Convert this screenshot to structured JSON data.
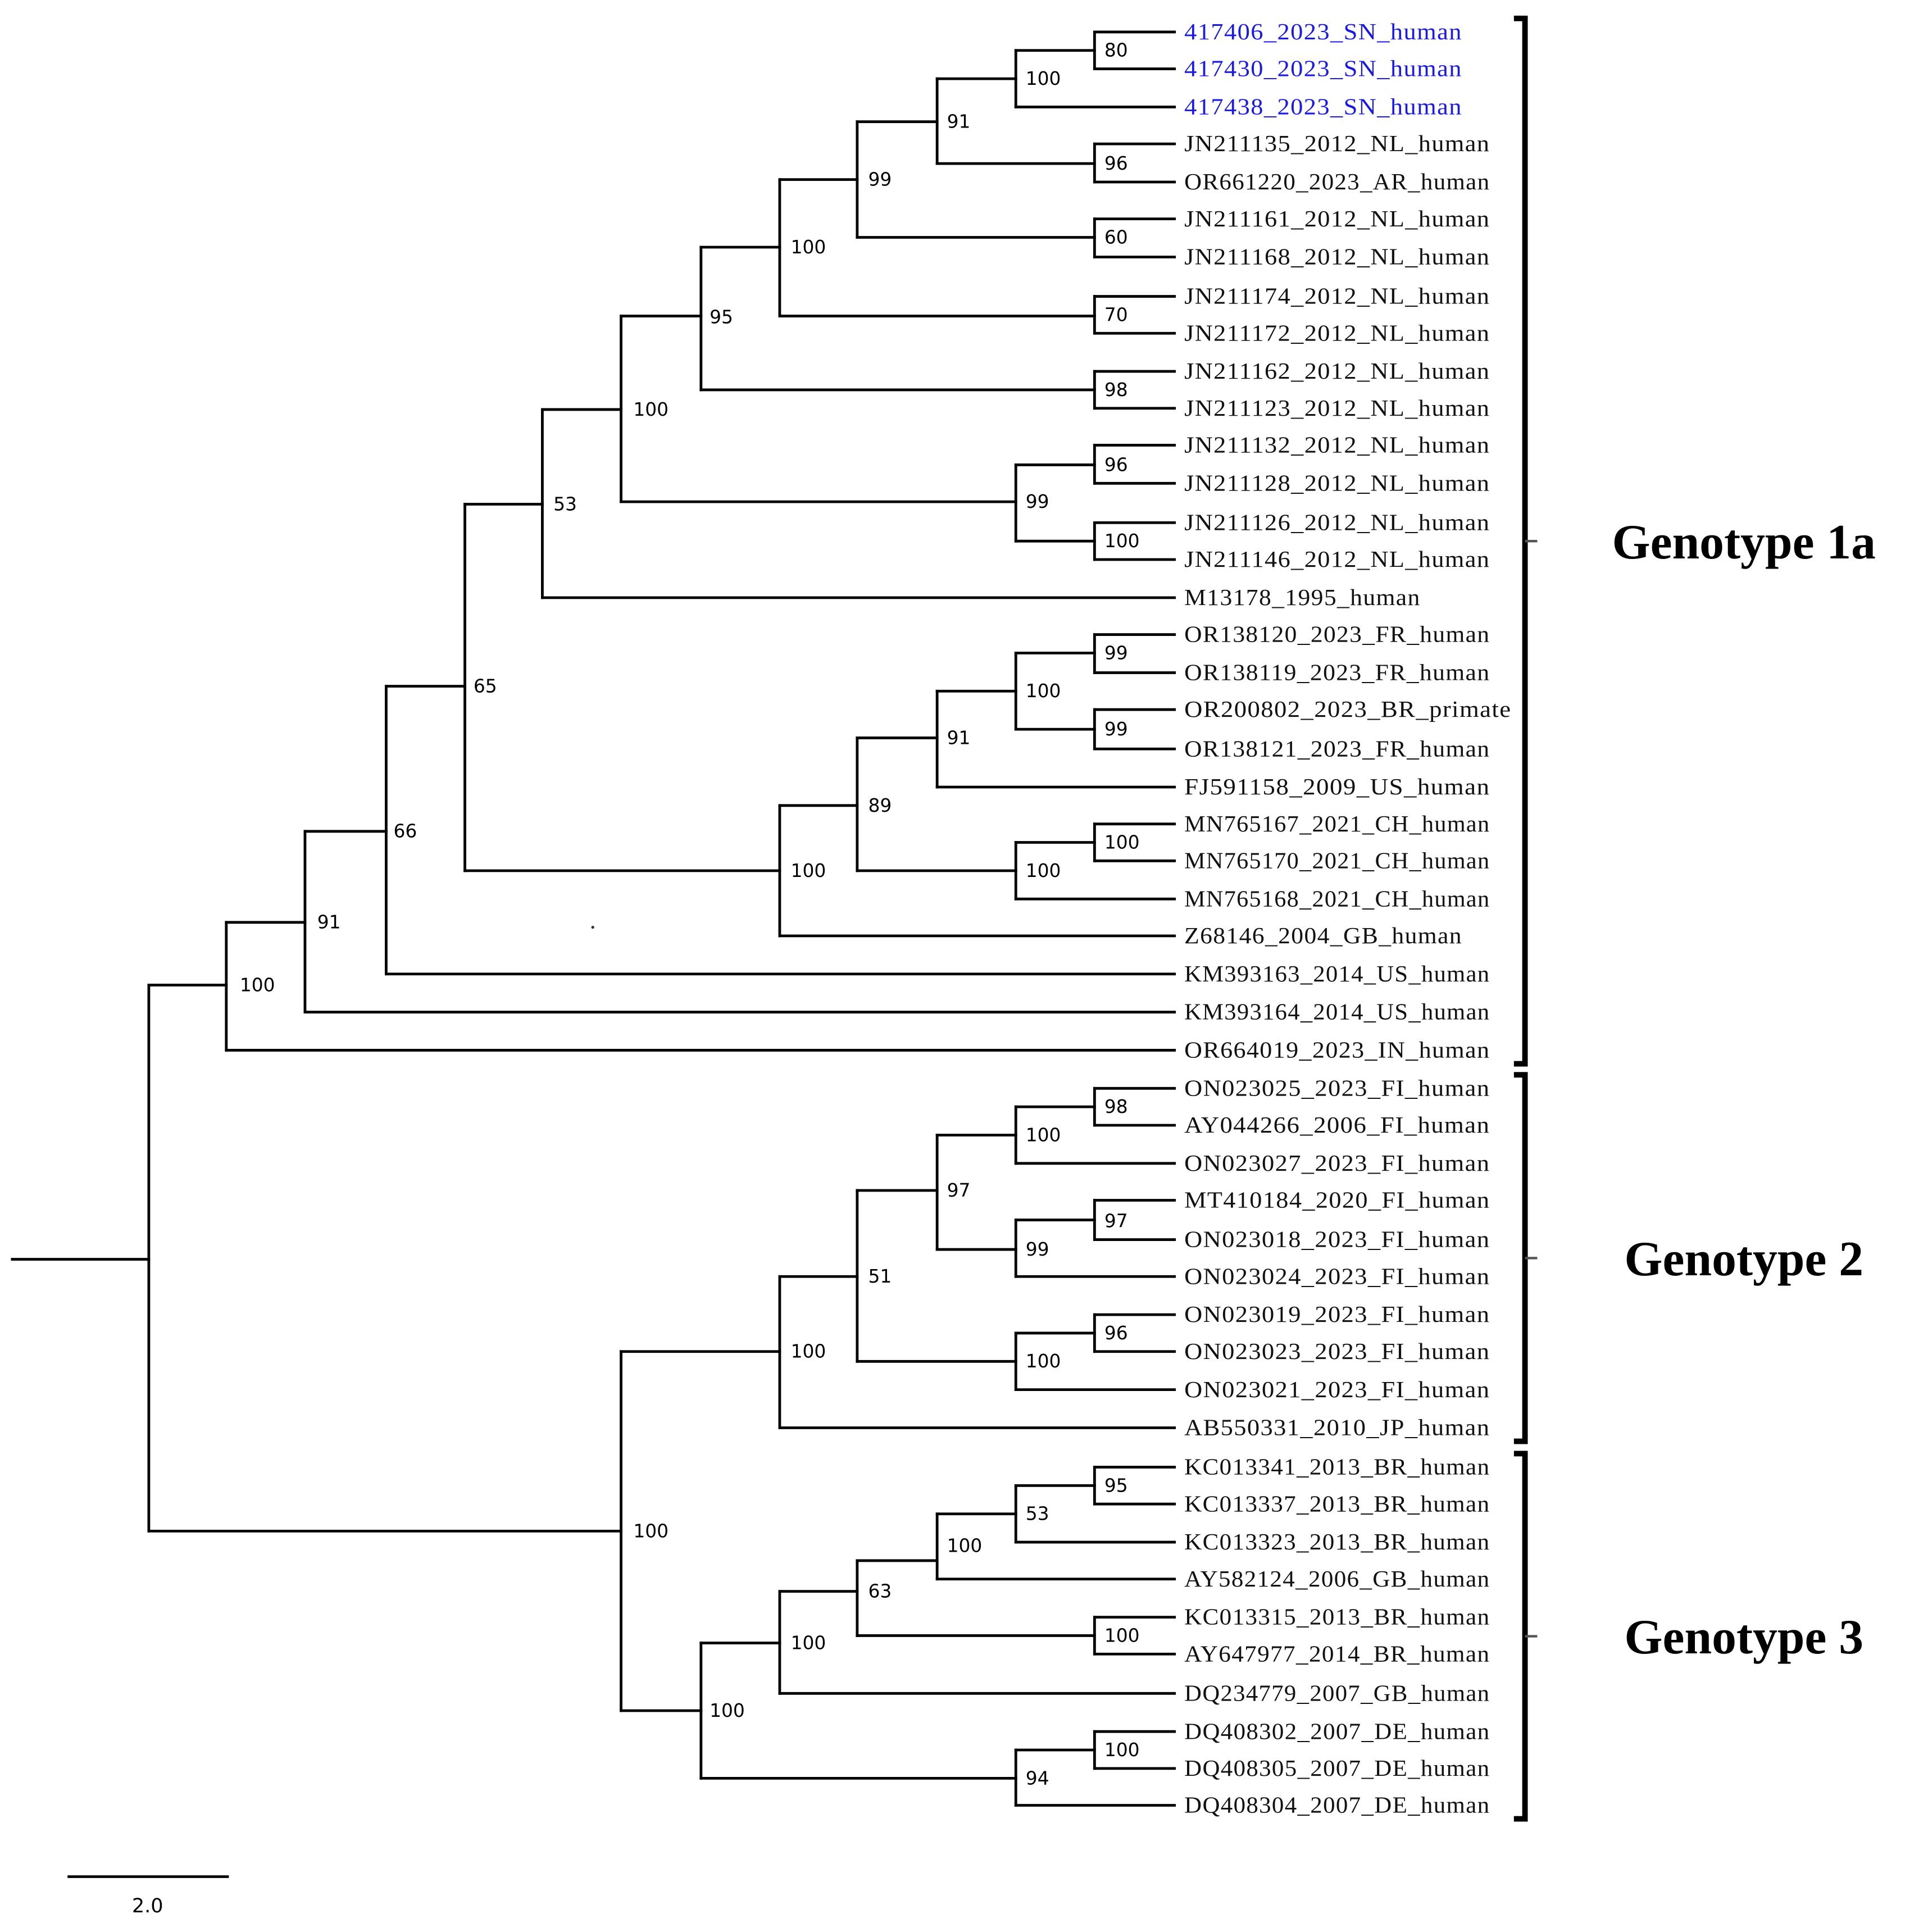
{
  "figure": {
    "type": "phylogenetic-tree",
    "scale_bar": {
      "label": "2.0"
    },
    "genotypes": [
      {
        "label": "Genotype 1a",
        "first_leaf": 0,
        "last_leaf": 27
      },
      {
        "label": "Genotype 2",
        "first_leaf": 28,
        "last_leaf": 37
      },
      {
        "label": "Genotype 3",
        "first_leaf": 38,
        "last_leaf": 47
      }
    ],
    "highlight_color": "#1a1ae6",
    "leaves": [
      {
        "label": "417406_2023_SN_human",
        "highlight": true
      },
      {
        "label": "417430_2023_SN_human",
        "highlight": true
      },
      {
        "label": "417438_2023_SN_human",
        "highlight": true
      },
      {
        "label": "JN211135_2012_NL_human"
      },
      {
        "label": "OR661220_2023_AR_human"
      },
      {
        "label": "JN211161_2012_NL_human"
      },
      {
        "label": "JN211168_2012_NL_human"
      },
      {
        "label": "JN211174_2012_NL_human"
      },
      {
        "label": "JN211172_2012_NL_human"
      },
      {
        "label": "JN211162_2012_NL_human"
      },
      {
        "label": "JN211123_2012_NL_human"
      },
      {
        "label": "JN211132_2012_NL_human"
      },
      {
        "label": "JN211128_2012_NL_human"
      },
      {
        "label": "JN211126_2012_NL_human"
      },
      {
        "label": "JN211146_2012_NL_human"
      },
      {
        "label": "M13178_1995_human"
      },
      {
        "label": "OR138120_2023_FR_human"
      },
      {
        "label": "OR138119_2023_FR_human"
      },
      {
        "label": "OR200802_2023_BR_primate"
      },
      {
        "label": "OR138121_2023_FR_human"
      },
      {
        "label": "FJ591158_2009_US_human"
      },
      {
        "label": "MN765167_2021_CH_human"
      },
      {
        "label": "MN765170_2021_CH_human"
      },
      {
        "label": "MN765168_2021_CH_human"
      },
      {
        "label": "Z68146_2004_GB_human"
      },
      {
        "label": "KM393163_2014_US_human"
      },
      {
        "label": "KM393164_2014_US_human"
      },
      {
        "label": "OR664019_2023_IN_human"
      },
      {
        "label": "ON023025_2023_FI_human"
      },
      {
        "label": "AY044266_2006_FI_human"
      },
      {
        "label": "ON023027_2023_FI_human"
      },
      {
        "label": "MT410184_2020_FI_human"
      },
      {
        "label": "ON023018_2023_FI_human"
      },
      {
        "label": "ON023024_2023_FI_human"
      },
      {
        "label": "ON023019_2023_FI_human"
      },
      {
        "label": "ON023023_2023_FI_human"
      },
      {
        "label": "ON023021_2023_FI_human"
      },
      {
        "label": "AB550331_2010_JP_human"
      },
      {
        "label": "KC013341_2013_BR_human"
      },
      {
        "label": "KC013337_2013_BR_human"
      },
      {
        "label": "KC013323_2013_BR_human"
      },
      {
        "label": "AY582124_2006_GB_human"
      },
      {
        "label": "KC013315_2013_BR_human"
      },
      {
        "label": "AY647977_2014_BR_human"
      },
      {
        "label": "DQ234779_2007_GB_human"
      },
      {
        "label": "DQ408302_2007_DE_human"
      },
      {
        "label": "DQ408305_2007_DE_human"
      },
      {
        "label": "DQ408304_2007_DE_human"
      }
    ],
    "bootstrap_values": [
      "80",
      "100",
      "91",
      "96",
      "99",
      "60",
      "100",
      "70",
      "95",
      "98",
      "100",
      "96",
      "99",
      "100",
      "53",
      "99",
      "100",
      "99",
      "91",
      "89",
      "100",
      "100",
      "100",
      "65",
      "66",
      "91",
      "100",
      "98",
      "100",
      "97",
      "97",
      "99",
      "51",
      "96",
      "100",
      "100",
      "95",
      "53",
      "100",
      "63",
      "100",
      "100",
      "100",
      "94",
      "100",
      "100"
    ]
  }
}
